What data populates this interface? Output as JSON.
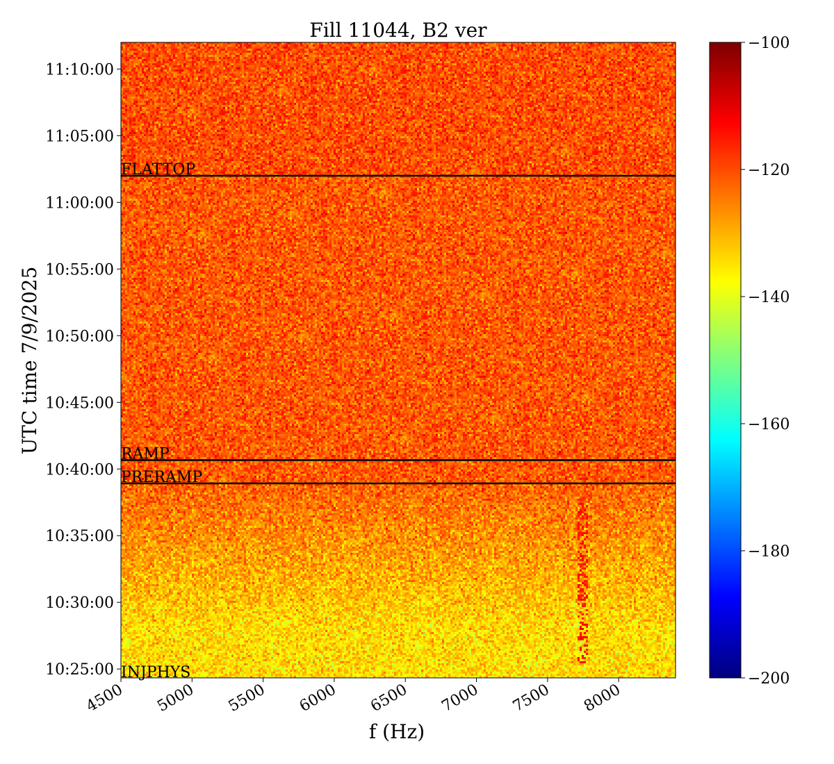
{
  "chart_data": {
    "type": "heatmap",
    "title": "Fill 11044, B2 ver",
    "xlabel": "f (Hz)",
    "ylabel": "UTC time 7/9/2025",
    "xlim": [
      4500,
      8400
    ],
    "ylim": [
      "10:24:20",
      "11:12:00"
    ],
    "x_ticks": [
      4500,
      5000,
      5500,
      6000,
      6500,
      7000,
      7500,
      8000
    ],
    "y_ticks": [
      "10:25:00",
      "10:30:00",
      "10:35:00",
      "10:40:00",
      "10:45:00",
      "10:50:00",
      "10:55:00",
      "11:00:00",
      "11:05:00",
      "11:10:00"
    ],
    "colorbar": {
      "range": [
        -200,
        -100
      ],
      "ticks": [
        "−200",
        "−180",
        "−160",
        "−140",
        "−120",
        "−100"
      ],
      "colormap": "jet"
    },
    "markers": [
      {
        "label": "INJPHYS",
        "time": "10:24:20"
      },
      {
        "label": "PRERAMP",
        "time": "10:38:55"
      },
      {
        "label": "RAMP",
        "time": "10:40:40"
      },
      {
        "label": "FLATTOP",
        "time": "11:02:00"
      }
    ],
    "levels": {
      "flattop": -120,
      "ramp": -121,
      "preramp_top": -122,
      "injection_end": -134,
      "noise_std": 4.5
    },
    "feature": {
      "description_f": 7750,
      "band_start": "10:25:30",
      "band_end": "10:38:00",
      "level": -114
    }
  }
}
